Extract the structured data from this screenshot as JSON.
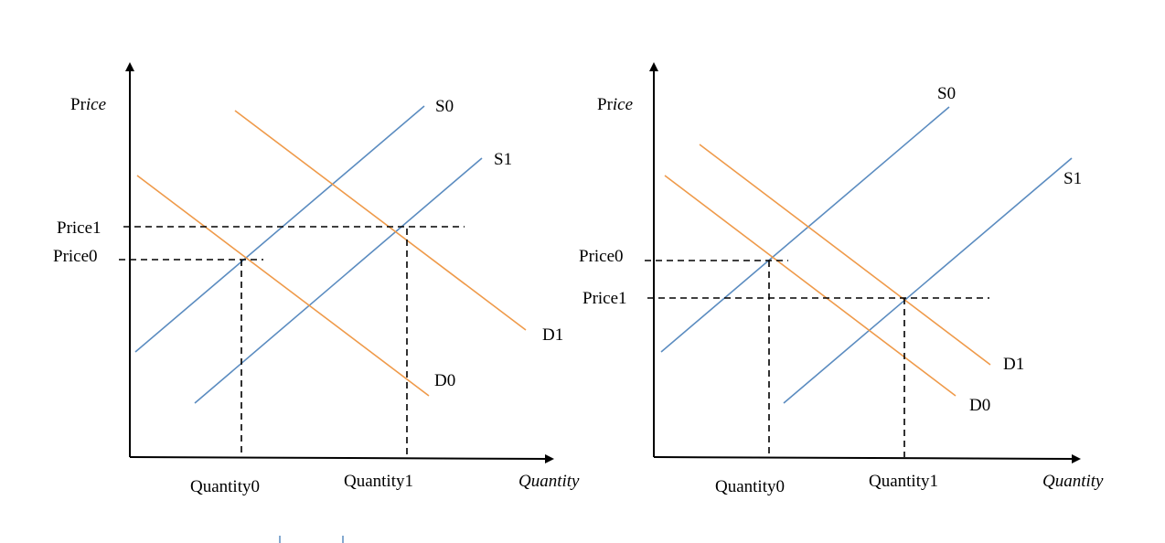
{
  "colors": {
    "supply": "#5b8cc0",
    "demand": "#ef9a4a",
    "axis": "#000000"
  },
  "left": {
    "y_axis": {
      "prefix": "Pr",
      "suffix": "ice"
    },
    "x_axis": "Quantity",
    "curves": {
      "s0": "S0",
      "s1": "S1",
      "d0": "D0",
      "d1": "D1"
    },
    "price_labels": {
      "p1": "Price1",
      "p0": "Price0"
    },
    "quantity_labels": {
      "q0": "Quantity0",
      "q1": "Quantity1"
    }
  },
  "right": {
    "y_axis": {
      "prefix": "Pr",
      "suffix": "ice"
    },
    "x_axis": "Quantity",
    "curves": {
      "s0": "S0",
      "s1": "S1",
      "d0": "D0",
      "d1": "D1"
    },
    "price_labels": {
      "p0": "Price0",
      "p1": "Price1"
    },
    "quantity_labels": {
      "q0": "Quantity0",
      "q1": "Quantity1"
    }
  }
}
